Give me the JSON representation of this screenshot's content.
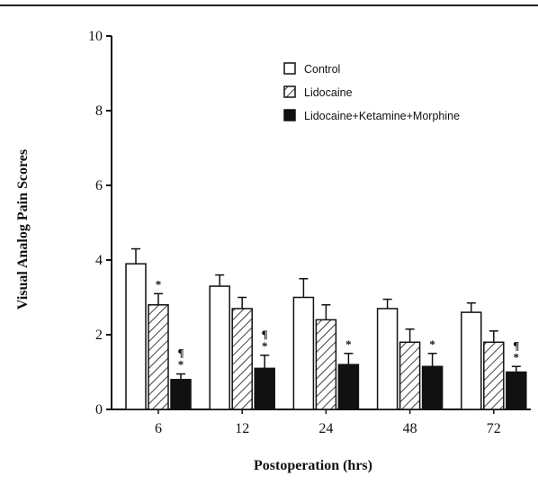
{
  "chart_data": {
    "type": "bar",
    "title": "",
    "xlabel": "Postoperation  (hrs)",
    "ylabel": "Visual  Analog  Pain  Scores",
    "categories": [
      "6",
      "12",
      "24",
      "48",
      "72"
    ],
    "ylim": [
      0,
      10
    ],
    "yticks": [
      "0",
      "2",
      "4",
      "6",
      "8",
      "10"
    ],
    "legend_position": "top-right",
    "series": [
      {
        "name": "Control",
        "pattern": "open",
        "values": [
          3.9,
          3.3,
          3.0,
          2.7,
          2.6
        ],
        "errors": [
          0.4,
          0.3,
          0.5,
          0.25,
          0.25
        ],
        "markers": [
          "",
          "",
          "",
          "",
          ""
        ]
      },
      {
        "name": "Lidocaine",
        "pattern": "hatched",
        "values": [
          2.8,
          2.7,
          2.4,
          1.8,
          1.8
        ],
        "errors": [
          0.3,
          0.3,
          0.4,
          0.35,
          0.3
        ],
        "markers": [
          "*",
          "",
          "",
          "",
          ""
        ]
      },
      {
        "name": "Lidocaine+Ketamine+Morphine",
        "pattern": "solid",
        "values": [
          0.8,
          1.1,
          1.2,
          1.15,
          1.0
        ],
        "errors": [
          0.15,
          0.35,
          0.3,
          0.35,
          0.15
        ],
        "markers": [
          "¶\n*",
          "¶\n*",
          "*",
          "*",
          "¶\n*"
        ]
      }
    ]
  }
}
